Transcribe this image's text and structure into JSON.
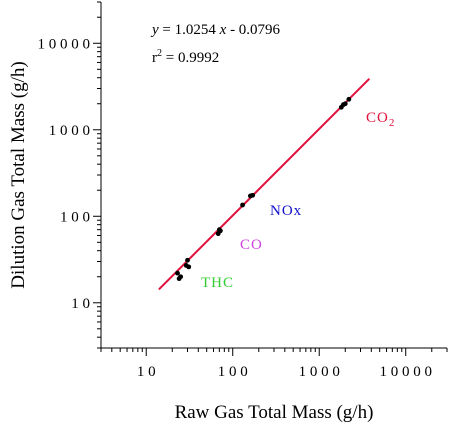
{
  "chart_data": {
    "type": "scatter",
    "xlabel": "Raw Gas Total Mass (g/h)",
    "ylabel": "Dilution Gas Total Mass (g/h)",
    "xscale": "log",
    "yscale": "log",
    "xlim": [
      3,
      30000
    ],
    "ylim": [
      3,
      30000
    ],
    "xticks": [
      10,
      100,
      1000,
      10000
    ],
    "yticks": [
      10,
      100,
      1000,
      10000
    ],
    "xtick_labels": [
      "1 0",
      "1 0 0",
      "1 0 0 0",
      "1 0 0 0 0"
    ],
    "ytick_labels": [
      "1 0",
      "1 0 0",
      "1 0 0 0",
      "1 0 0 0 0"
    ],
    "grid": false,
    "fit": {
      "slope": 1.0254,
      "intercept": -0.0796,
      "x_range": [
        14,
        3800
      ],
      "color": "#e0103a"
    },
    "equation_text": {
      "y_italic": "y",
      "equals": " = 1.0254 ",
      "x_italic": "x",
      "rest": "  -  0.0796",
      "r2_base": "r",
      "r2_sup": "2",
      "r2_rest": " = 0.9992"
    },
    "series": [
      {
        "name": "THC",
        "color": "#33cc33",
        "x": [
          23,
          24,
          25,
          29,
          30,
          31
        ],
        "y": [
          22,
          19,
          20,
          27,
          31,
          26
        ]
      },
      {
        "name": "CO",
        "color": "#cc44dd",
        "x": [
          68,
          70,
          72
        ],
        "y": [
          63,
          70,
          68
        ]
      },
      {
        "name": "NOx",
        "color": "#1010cc",
        "x": [
          130,
          160,
          170
        ],
        "y": [
          135,
          172,
          175
        ]
      },
      {
        "name": "CO2",
        "color": "#e0103a",
        "x": [
          1800,
          1900,
          2000,
          2200
        ],
        "y": [
          1820,
          1950,
          2000,
          2250
        ]
      }
    ],
    "point_color": "#000000",
    "annotations": {
      "thc": "THC",
      "co": "CO",
      "nox": "NOx",
      "co2_base": "CO",
      "co2_sub": "2"
    }
  }
}
